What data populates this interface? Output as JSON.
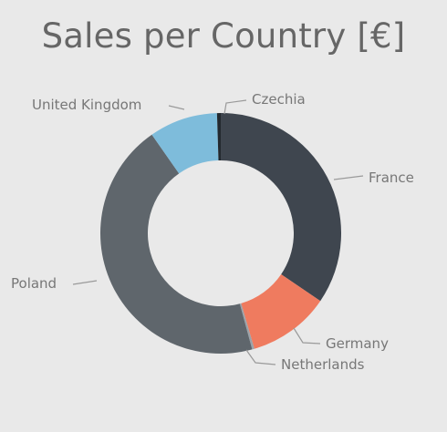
{
  "chart_data": {
    "type": "pie",
    "title": "Sales per Country [€]",
    "donut": true,
    "start_angle_deg": 0,
    "slices": [
      {
        "label": "France",
        "value": 34.5,
        "color": "#3f464f"
      },
      {
        "label": "Germany",
        "value": 11.0,
        "color": "#ef7b5f"
      },
      {
        "label": "Netherlands",
        "value": 0.3,
        "color": "#9aa3aa"
      },
      {
        "label": "Poland",
        "value": 44.5,
        "color": "#5f666c"
      },
      {
        "label": "United Kingdom",
        "value": 9.2,
        "color": "#7ebcdb"
      },
      {
        "label": "Czechia",
        "value": 0.5,
        "color": "#23292f"
      }
    ],
    "legend": "none"
  }
}
